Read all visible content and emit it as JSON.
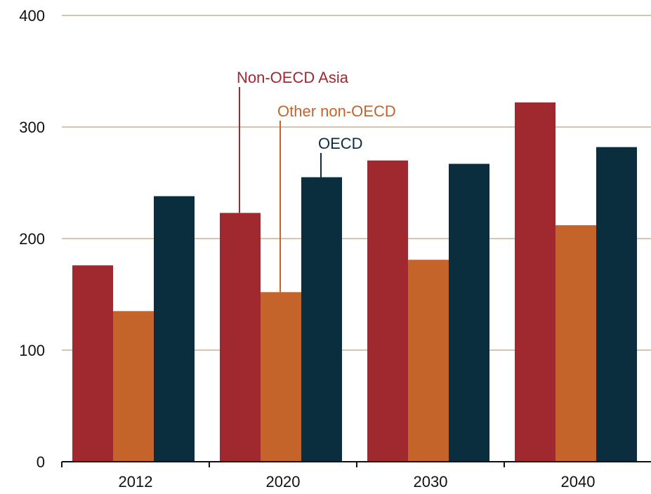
{
  "chart_data": {
    "type": "bar",
    "categories": [
      "2012",
      "2020",
      "2030",
      "2040"
    ],
    "series": [
      {
        "name": "Non-OECD Asia",
        "color": "#a0282f",
        "values": [
          176,
          223,
          270,
          322
        ]
      },
      {
        "name": "Other non-OECD",
        "color": "#c4642a",
        "values": [
          135,
          152,
          181,
          212
        ]
      },
      {
        "name": "OECD",
        "color": "#0b2e3f",
        "values": [
          238,
          255,
          267,
          282
        ]
      }
    ],
    "ylim": [
      0,
      400
    ],
    "yticks": [
      0,
      100,
      200,
      300,
      400
    ],
    "grid": true,
    "gridline_color": "#d8c3ad",
    "annotations": [
      {
        "text": "Non-OECD Asia",
        "series": 0,
        "category": "2020",
        "color": "#a0282f"
      },
      {
        "text": "Other non-OECD",
        "series": 1,
        "category": "2020",
        "color": "#c4642a"
      },
      {
        "text": "OECD",
        "series": 2,
        "category": "2020",
        "color": "#0b2e3f"
      }
    ]
  }
}
